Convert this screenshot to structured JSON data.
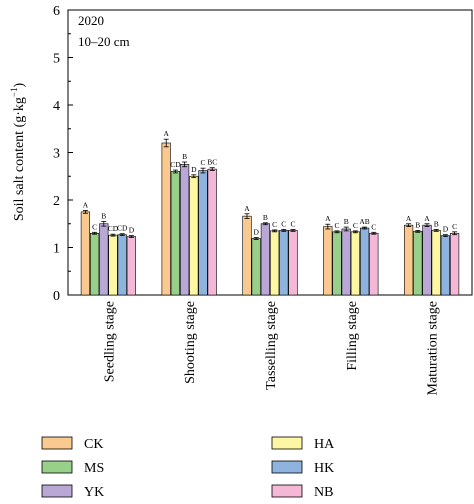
{
  "chart_data": {
    "type": "bar",
    "annotation": [
      "2020",
      "10–20 cm"
    ],
    "ylabel": "Soil salt content (g·kg⁻¹)",
    "ylabel_parts": {
      "main": "Soil salt content (g·kg",
      "sup": "−1",
      "close": ")"
    },
    "xlabel": "",
    "ylim": [
      0,
      6
    ],
    "yticks": [
      "0",
      "1",
      "2",
      "3",
      "4",
      "5",
      "6"
    ],
    "categories": [
      "Seedling stage",
      "Shooting stage",
      "Tasselling stage",
      "Filling stage",
      "Maturation stage"
    ],
    "series": [
      {
        "name": "CK",
        "color": "#f9c98f",
        "values": [
          1.75,
          3.2,
          1.66,
          1.44,
          1.47
        ],
        "errors": [
          0.03,
          0.08,
          0.05,
          0.05,
          0.03
        ],
        "letters": [
          "A",
          "A",
          "A",
          "A",
          "A"
        ]
      },
      {
        "name": "MS",
        "color": "#98d08a",
        "values": [
          1.3,
          2.6,
          1.19,
          1.33,
          1.34
        ],
        "errors": [
          0.02,
          0.03,
          0.02,
          0.02,
          0.02
        ],
        "letters": [
          "C",
          "CD",
          "D",
          "C",
          "B"
        ]
      },
      {
        "name": "YK",
        "color": "#b9a8d6",
        "values": [
          1.5,
          2.75,
          1.5,
          1.39,
          1.47
        ],
        "errors": [
          0.05,
          0.05,
          0.02,
          0.04,
          0.03
        ],
        "letters": [
          "B",
          "B",
          "B",
          "B",
          "A"
        ]
      },
      {
        "name": "HA",
        "color": "#fdf6a3",
        "values": [
          1.26,
          2.5,
          1.35,
          1.33,
          1.36
        ],
        "errors": [
          0.02,
          0.03,
          0.02,
          0.02,
          0.02
        ],
        "letters": [
          "CD",
          "D",
          "C",
          "C",
          "B"
        ]
      },
      {
        "name": "HK",
        "color": "#8fb3df",
        "values": [
          1.27,
          2.62,
          1.36,
          1.41,
          1.25
        ],
        "errors": [
          0.02,
          0.05,
          0.02,
          0.02,
          0.02
        ],
        "letters": [
          "CD",
          "C",
          "C",
          "AB",
          "D"
        ]
      },
      {
        "name": "NB",
        "color": "#f4b8d6",
        "values": [
          1.23,
          2.65,
          1.36,
          1.3,
          1.3
        ],
        "errors": [
          0.02,
          0.03,
          0.02,
          0.02,
          0.03
        ],
        "letters": [
          "D",
          "BC",
          "C",
          "C",
          "C"
        ]
      }
    ],
    "legend_placement": "bottom, two columns",
    "grid": false,
    "error_bars": true
  }
}
